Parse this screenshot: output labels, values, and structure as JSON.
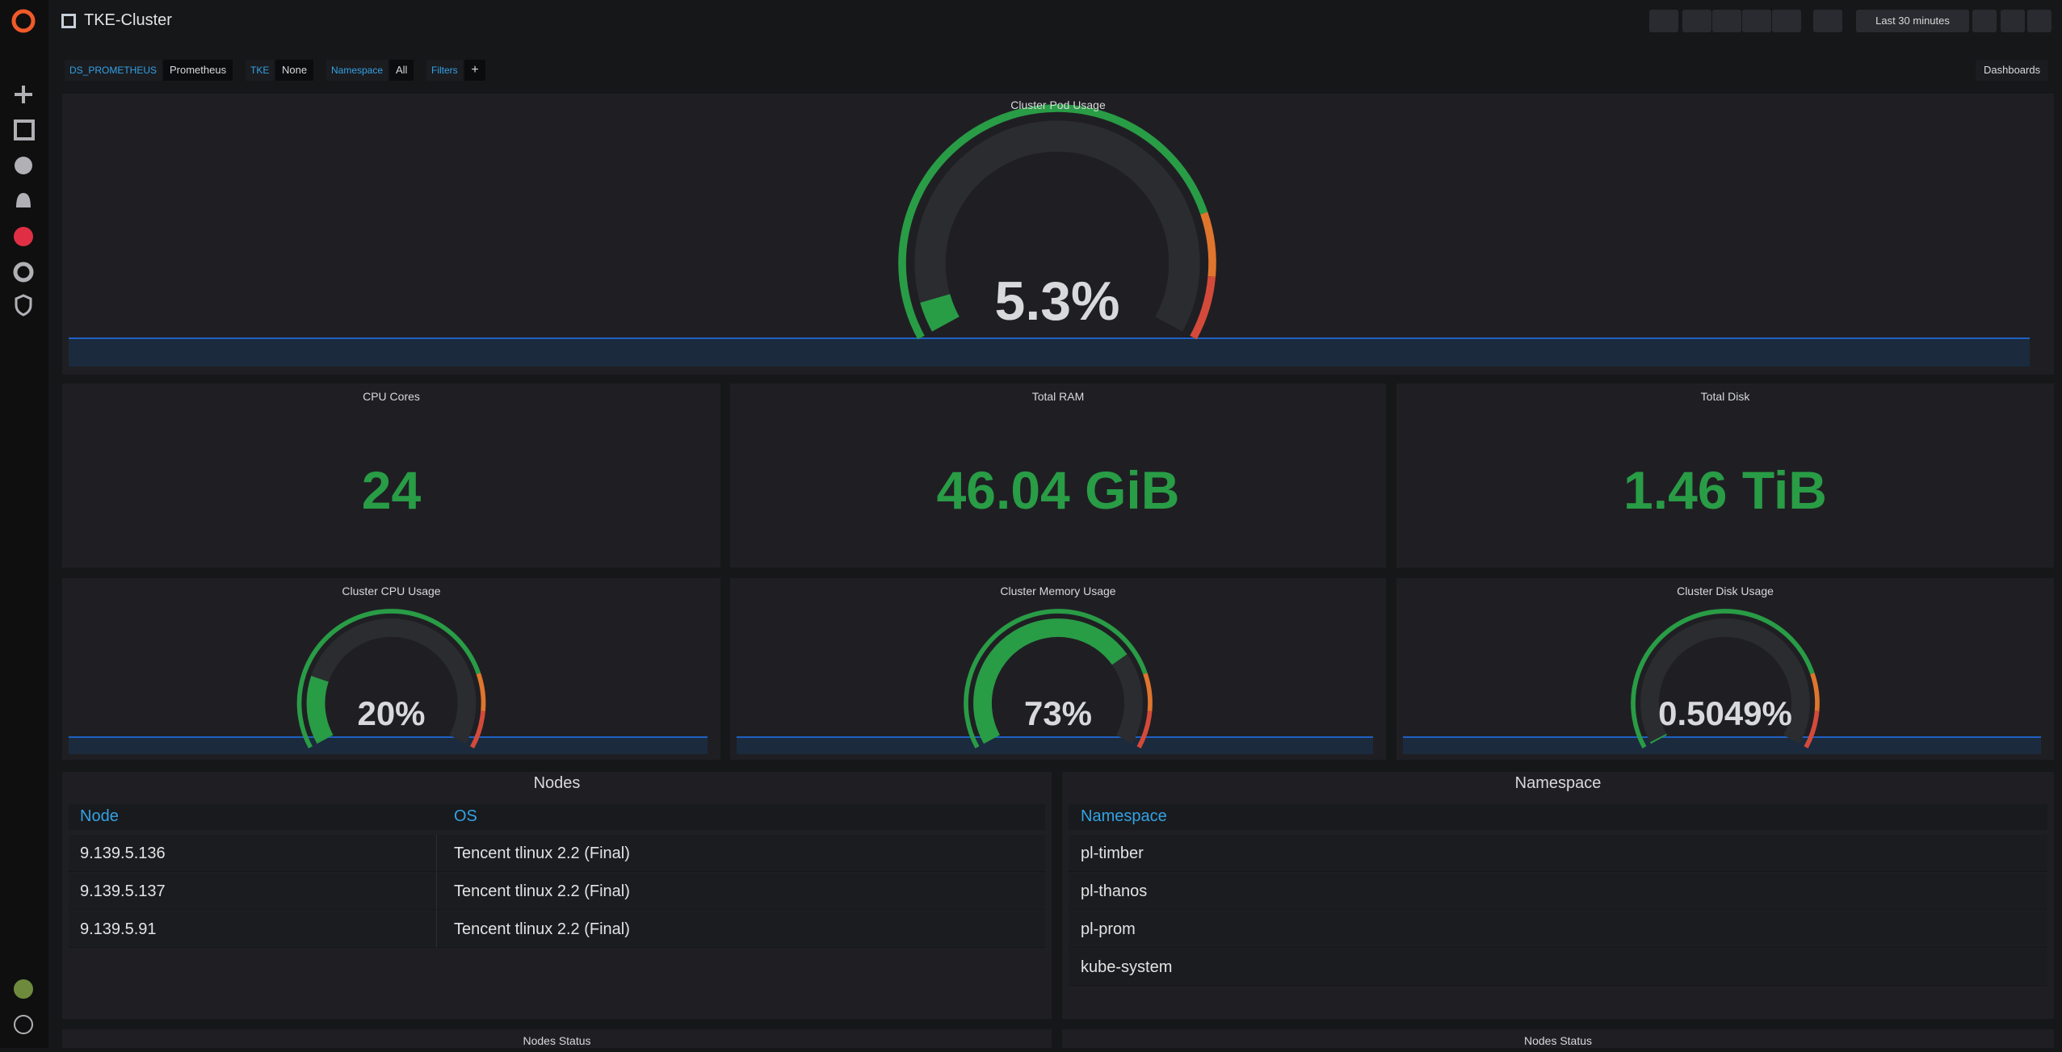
{
  "header": {
    "title": "TKE-Cluster",
    "time_range": "Last 30 minutes",
    "dashboards": "Dashboards"
  },
  "variables": [
    {
      "label": "DS_PROMETHEUS",
      "value": "Prometheus"
    },
    {
      "label": "TKE",
      "value": "None"
    },
    {
      "label": "Namespace",
      "value": "All"
    }
  ],
  "filters": "Filters",
  "pod_usage": {
    "title": "Cluster Pod Usage",
    "value": 5.3,
    "value_label": "5.3%",
    "range": [
      0,
      100
    ],
    "thresholds": [
      80,
      90
    ],
    "colors": [
      "#299c46",
      "#e0752d",
      "#d44a3a"
    ]
  },
  "stats": [
    {
      "title": "CPU Cores",
      "value": 24
    },
    {
      "title": "Total RAM",
      "value": "46.04 GiB"
    },
    {
      "title": "Total Disk",
      "value": "1.46 TiB"
    }
  ],
  "gauges": [
    {
      "title": "Cluster CPU Usage",
      "value": 20,
      "value_label": "20%",
      "range": [
        0,
        100
      ],
      "thresholds": [
        80,
        90
      ],
      "colors": [
        "#299c46",
        "#e0752d",
        "#d44a3a"
      ]
    },
    {
      "title": "Cluster Memory Usage",
      "value": 73,
      "value_label": "73%",
      "range": [
        0,
        100
      ],
      "thresholds": [
        80,
        90
      ],
      "colors": [
        "#299c46",
        "#e0752d",
        "#d44a3a"
      ]
    },
    {
      "title": "Cluster Disk Usage",
      "value": 0.5049,
      "value_label": "0.5049%",
      "range": [
        0,
        100
      ],
      "thresholds": [
        80,
        90
      ],
      "colors": [
        "#299c46",
        "#e0752d",
        "#d44a3a"
      ]
    }
  ],
  "nodes_table": {
    "title": "Nodes",
    "columns": [
      "Node",
      "OS"
    ],
    "rows": [
      [
        "9.139.5.136",
        "Tencent tlinux 2.2 (Final)"
      ],
      [
        "9.139.5.137",
        "Tencent tlinux 2.2 (Final)"
      ],
      [
        "9.139.5.91",
        "Tencent tlinux 2.2 (Final)"
      ]
    ]
  },
  "namespace_table": {
    "title": "Namespace",
    "columns": [
      "Namespace"
    ],
    "rows": [
      [
        "pl-timber"
      ],
      [
        "pl-thanos"
      ],
      [
        "pl-prom"
      ],
      [
        "kube-system"
      ]
    ]
  },
  "bottom_panels": [
    "Nodes Status",
    "Nodes Status"
  ]
}
